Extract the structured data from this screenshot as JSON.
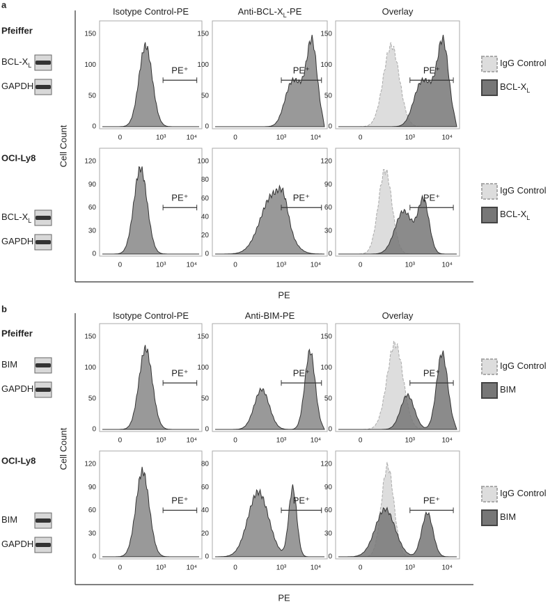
{
  "figure": {
    "panels": [
      {
        "label": "a",
        "y_axis_label": "Cell Count",
        "x_axis_label": "PE",
        "column_titles": [
          {
            "text": "Isotype Control-PE"
          },
          {
            "text": "Anti-BCL-X",
            "sub": "L",
            "after": "-PE"
          },
          {
            "text": "Overlay"
          }
        ],
        "rows": [
          {
            "cell_line": "Pfeiffer",
            "blots": [
              {
                "text": "BCL-X",
                "sub": "L"
              },
              {
                "text": "GAPDH"
              }
            ],
            "legend": [
              {
                "text": "IgG Control"
              },
              {
                "text": "BCL-X",
                "sub": "L"
              }
            ],
            "plots": [
              {
                "yticks": [
                  "0",
                  "50",
                  "100",
                  "150"
                ],
                "xticks": [
                  "0",
                  "10³",
                  "10⁴"
                ],
                "gate": "PE⁺"
              },
              {
                "yticks": [
                  "0",
                  "50",
                  "100",
                  "150"
                ],
                "xticks": [
                  "0",
                  "10³",
                  "10⁴"
                ],
                "gate": "PE⁺"
              },
              {
                "yticks": [
                  "0",
                  "50",
                  "100",
                  "150"
                ],
                "xticks": [
                  "0",
                  "10³",
                  "10⁴"
                ],
                "gate": "PE⁺"
              }
            ]
          },
          {
            "cell_line": "OCI-Ly8",
            "blots": [
              {
                "text": "BCL-X",
                "sub": "L"
              },
              {
                "text": "GAPDH"
              }
            ],
            "legend": [
              {
                "text": "IgG Control"
              },
              {
                "text": "BCL-X",
                "sub": "L"
              }
            ],
            "plots": [
              {
                "yticks": [
                  "0",
                  "30",
                  "60",
                  "90",
                  "120"
                ],
                "xticks": [
                  "0",
                  "10³",
                  "10⁴"
                ],
                "gate": "PE⁺"
              },
              {
                "yticks": [
                  "0",
                  "20",
                  "40",
                  "60",
                  "80",
                  "100"
                ],
                "xticks": [
                  "0",
                  "10³",
                  "10⁴"
                ],
                "gate": "PE⁺"
              },
              {
                "yticks": [
                  "0",
                  "30",
                  "60",
                  "90",
                  "120"
                ],
                "xticks": [
                  "0",
                  "10³",
                  "10⁴"
                ],
                "gate": "PE⁺"
              }
            ]
          }
        ]
      },
      {
        "label": "b",
        "y_axis_label": "Cell Count",
        "x_axis_label": "PE",
        "column_titles": [
          {
            "text": "Isotype Control-PE"
          },
          {
            "text": "Anti-BIM-PE"
          },
          {
            "text": "Overlay"
          }
        ],
        "rows": [
          {
            "cell_line": "Pfeiffer",
            "blots": [
              {
                "text": "BIM"
              },
              {
                "text": "GAPDH"
              }
            ],
            "legend": [
              {
                "text": "IgG Control"
              },
              {
                "text": "BIM"
              }
            ],
            "plots": [
              {
                "yticks": [
                  "0",
                  "50",
                  "100",
                  "150"
                ],
                "xticks": [
                  "0",
                  "10³",
                  "10⁴"
                ],
                "gate": "PE⁺"
              },
              {
                "yticks": [
                  "0",
                  "50",
                  "100",
                  "150"
                ],
                "xticks": [
                  "0",
                  "10³",
                  "10⁴"
                ],
                "gate": "PE⁺"
              },
              {
                "yticks": [
                  "0",
                  "50",
                  "100",
                  "150"
                ],
                "xticks": [
                  "0",
                  "10³",
                  "10⁴"
                ],
                "gate": "PE⁺"
              }
            ]
          },
          {
            "cell_line": "OCI-Ly8",
            "blots": [
              {
                "text": "BIM"
              },
              {
                "text": "GAPDH"
              }
            ],
            "legend": [
              {
                "text": "IgG Control"
              },
              {
                "text": "BIM"
              }
            ],
            "plots": [
              {
                "yticks": [
                  "0",
                  "30",
                  "60",
                  "90",
                  "120"
                ],
                "xticks": [
                  "0",
                  "10³",
                  "10⁴"
                ],
                "gate": "PE⁺"
              },
              {
                "yticks": [
                  "0",
                  "20",
                  "40",
                  "60",
                  "80"
                ],
                "xticks": [
                  "0",
                  "10³",
                  "10⁴"
                ],
                "gate": "PE⁺"
              },
              {
                "yticks": [
                  "0",
                  "30",
                  "60",
                  "90",
                  "120"
                ],
                "xticks": [
                  "0",
                  "10³",
                  "10⁴"
                ],
                "gate": "PE⁺"
              }
            ]
          }
        ]
      }
    ]
  }
}
